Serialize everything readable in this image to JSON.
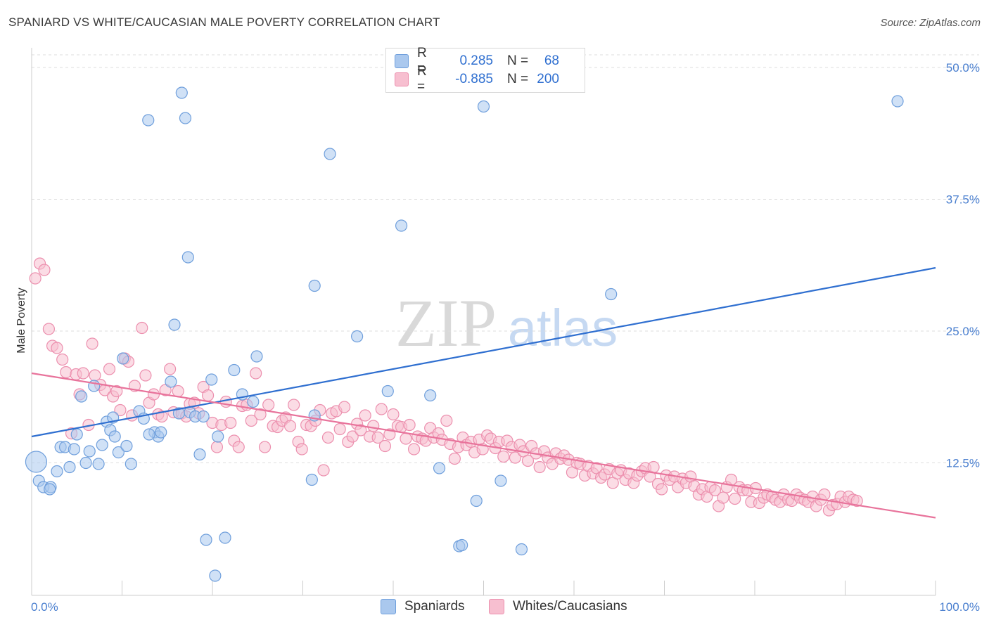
{
  "header": {
    "title": "SPANIARD VS WHITE/CAUCASIAN MALE POVERTY CORRELATION CHART",
    "source": "Source: ZipAtlas.com"
  },
  "watermark": {
    "zip": "ZIP",
    "atlas": "atlas"
  },
  "legend": {
    "rows": [
      {
        "r_label": "R =",
        "r_value": "0.285",
        "n_label": "N =",
        "n_value": "68"
      },
      {
        "r_label": "R =",
        "r_value": "-0.885",
        "n_label": "N =",
        "n_value": "200"
      }
    ]
  },
  "bottom_legend": {
    "series1": "Spaniards",
    "series2": "Whites/Caucasians"
  },
  "colors": {
    "blue_fill": "#aac8ee",
    "blue_stroke": "#6f9fdc",
    "blue_line": "#2f6fd0",
    "pink_fill": "#f7bfd0",
    "pink_stroke": "#ec8fae",
    "pink_line": "#e8739b",
    "grid": "#dddddd",
    "axis": "#cccccc",
    "tick_text": "#4a7fcf"
  },
  "chart_data": {
    "type": "scatter",
    "title": "SPANIARD VS WHITE/CAUCASIAN MALE POVERTY CORRELATION CHART",
    "xlabel": "",
    "ylabel": "Male Poverty",
    "xlim": [
      0,
      100
    ],
    "ylim": [
      0,
      50
    ],
    "x_tick_labels": [
      "0.0%",
      "100.0%"
    ],
    "y_ticks": [
      12.5,
      25.0,
      37.5,
      50.0
    ],
    "y_tick_labels": [
      "12.5%",
      "25.0%",
      "37.5%",
      "50.0%"
    ],
    "grid": true,
    "legend_position": "top-center",
    "series": [
      {
        "name": "Spaniards",
        "R": 0.285,
        "N": 68,
        "trend": {
          "x": [
            0,
            100
          ],
          "y": [
            15.0,
            31.0
          ]
        },
        "points": [
          [
            0.5,
            12.6
          ],
          [
            0.8,
            10.8
          ],
          [
            1.3,
            10.2
          ],
          [
            2.1,
            10.2
          ],
          [
            2.8,
            11.7
          ],
          [
            3.2,
            14.0
          ],
          [
            3.7,
            14.0
          ],
          [
            4.2,
            12.1
          ],
          [
            4.7,
            13.8
          ],
          [
            5.0,
            15.2
          ],
          [
            5.5,
            18.8
          ],
          [
            6.0,
            12.5
          ],
          [
            6.4,
            13.6
          ],
          [
            6.9,
            19.8
          ],
          [
            7.4,
            12.4
          ],
          [
            7.8,
            14.2
          ],
          [
            8.3,
            16.4
          ],
          [
            8.7,
            15.6
          ],
          [
            9.2,
            15.0
          ],
          [
            9.6,
            13.5
          ],
          [
            10.1,
            22.4
          ],
          [
            10.5,
            14.1
          ],
          [
            11.0,
            12.4
          ],
          [
            11.9,
            17.4
          ],
          [
            12.4,
            16.7
          ],
          [
            12.9,
            45.0
          ],
          [
            13.6,
            15.4
          ],
          [
            14.0,
            15.0
          ],
          [
            14.3,
            15.4
          ],
          [
            15.4,
            20.2
          ],
          [
            15.8,
            25.6
          ],
          [
            16.3,
            17.2
          ],
          [
            16.6,
            47.6
          ],
          [
            17.0,
            45.2
          ],
          [
            17.3,
            32.0
          ],
          [
            17.5,
            17.3
          ],
          [
            18.1,
            16.9
          ],
          [
            18.6,
            13.3
          ],
          [
            19.0,
            16.9
          ],
          [
            19.3,
            5.2
          ],
          [
            19.9,
            20.4
          ],
          [
            20.3,
            1.8
          ],
          [
            20.6,
            15.0
          ],
          [
            21.4,
            5.4
          ],
          [
            22.4,
            21.3
          ],
          [
            23.3,
            19.0
          ],
          [
            24.5,
            18.3
          ],
          [
            24.9,
            22.6
          ],
          [
            31.0,
            10.9
          ],
          [
            31.3,
            17.0
          ],
          [
            31.3,
            29.3
          ],
          [
            33.0,
            41.8
          ],
          [
            36.0,
            24.5
          ],
          [
            39.4,
            19.3
          ],
          [
            40.9,
            35.0
          ],
          [
            44.1,
            18.9
          ],
          [
            45.1,
            12.0
          ],
          [
            47.3,
            4.6
          ],
          [
            47.6,
            4.7
          ],
          [
            49.2,
            8.9
          ],
          [
            50.0,
            46.3
          ],
          [
            51.9,
            10.8
          ],
          [
            54.2,
            4.3
          ],
          [
            64.1,
            28.5
          ],
          [
            95.8,
            46.8
          ],
          [
            2.0,
            10.0
          ],
          [
            13.0,
            15.2
          ],
          [
            9.0,
            16.8
          ]
        ]
      },
      {
        "name": "Whites/Caucasians",
        "R": -0.885,
        "N": 200,
        "trend": {
          "x": [
            0,
            100
          ],
          "y": [
            21.0,
            7.3
          ]
        },
        "points": [
          [
            0.4,
            30.0
          ],
          [
            0.9,
            31.4
          ],
          [
            1.4,
            30.8
          ],
          [
            1.9,
            25.2
          ],
          [
            2.3,
            23.6
          ],
          [
            2.8,
            23.4
          ],
          [
            3.4,
            22.3
          ],
          [
            3.8,
            21.1
          ],
          [
            4.4,
            15.3
          ],
          [
            4.9,
            20.9
          ],
          [
            5.3,
            19.0
          ],
          [
            5.7,
            21.0
          ],
          [
            6.3,
            16.1
          ],
          [
            6.7,
            23.8
          ],
          [
            7.0,
            20.8
          ],
          [
            7.6,
            19.9
          ],
          [
            8.1,
            19.4
          ],
          [
            8.6,
            21.4
          ],
          [
            9.0,
            18.8
          ],
          [
            9.4,
            19.3
          ],
          [
            9.8,
            17.5
          ],
          [
            10.3,
            22.4
          ],
          [
            10.7,
            22.1
          ],
          [
            11.1,
            17.0
          ],
          [
            11.4,
            19.8
          ],
          [
            12.2,
            25.3
          ],
          [
            12.6,
            20.8
          ],
          [
            13.0,
            18.2
          ],
          [
            13.5,
            19.0
          ],
          [
            14.0,
            17.1
          ],
          [
            14.4,
            16.9
          ],
          [
            14.8,
            19.4
          ],
          [
            15.3,
            21.4
          ],
          [
            15.7,
            17.3
          ],
          [
            16.2,
            19.3
          ],
          [
            16.6,
            17.2
          ],
          [
            17.1,
            16.9
          ],
          [
            17.5,
            18.1
          ],
          [
            18.0,
            18.2
          ],
          [
            18.5,
            17.2
          ],
          [
            19.0,
            19.7
          ],
          [
            19.5,
            18.9
          ],
          [
            20.0,
            16.3
          ],
          [
            20.5,
            14.0
          ],
          [
            21.0,
            16.1
          ],
          [
            21.5,
            18.3
          ],
          [
            22.0,
            16.3
          ],
          [
            22.4,
            14.6
          ],
          [
            22.9,
            14.0
          ],
          [
            23.3,
            17.9
          ],
          [
            23.8,
            18.0
          ],
          [
            24.3,
            16.5
          ],
          [
            24.8,
            21.0
          ],
          [
            25.3,
            17.1
          ],
          [
            25.8,
            14.0
          ],
          [
            26.2,
            18.0
          ],
          [
            26.7,
            16.0
          ],
          [
            27.2,
            15.9
          ],
          [
            27.7,
            16.5
          ],
          [
            28.1,
            16.8
          ],
          [
            28.6,
            16.0
          ],
          [
            29.0,
            18.0
          ],
          [
            29.5,
            14.5
          ],
          [
            29.9,
            13.8
          ],
          [
            30.4,
            16.1
          ],
          [
            30.9,
            16.0
          ],
          [
            31.4,
            16.5
          ],
          [
            31.9,
            17.5
          ],
          [
            32.3,
            11.8
          ],
          [
            32.8,
            14.9
          ],
          [
            33.2,
            17.2
          ],
          [
            33.7,
            17.4
          ],
          [
            34.1,
            15.7
          ],
          [
            34.6,
            17.8
          ],
          [
            35.0,
            14.5
          ],
          [
            35.5,
            15.0
          ],
          [
            36.0,
            16.2
          ],
          [
            36.4,
            15.6
          ],
          [
            36.9,
            17.0
          ],
          [
            37.4,
            15.0
          ],
          [
            37.8,
            16.0
          ],
          [
            38.3,
            14.9
          ],
          [
            38.7,
            17.6
          ],
          [
            39.1,
            14.1
          ],
          [
            39.6,
            15.2
          ],
          [
            40.0,
            17.1
          ],
          [
            40.5,
            16.0
          ],
          [
            40.9,
            15.9
          ],
          [
            41.4,
            14.8
          ],
          [
            41.8,
            16.1
          ],
          [
            42.3,
            13.8
          ],
          [
            42.7,
            15.0
          ],
          [
            43.2,
            14.8
          ],
          [
            43.6,
            14.6
          ],
          [
            44.1,
            15.8
          ],
          [
            44.5,
            14.9
          ],
          [
            45.0,
            15.3
          ],
          [
            45.4,
            14.7
          ],
          [
            45.9,
            16.5
          ],
          [
            46.3,
            14.3
          ],
          [
            46.8,
            12.9
          ],
          [
            47.2,
            14.0
          ],
          [
            47.7,
            14.9
          ],
          [
            48.1,
            14.2
          ],
          [
            48.6,
            14.5
          ],
          [
            49.0,
            13.5
          ],
          [
            49.5,
            14.7
          ],
          [
            49.9,
            13.8
          ],
          [
            50.4,
            15.1
          ],
          [
            50.8,
            14.8
          ],
          [
            51.3,
            13.9
          ],
          [
            51.7,
            14.5
          ],
          [
            52.2,
            13.1
          ],
          [
            52.6,
            14.6
          ],
          [
            53.1,
            14.0
          ],
          [
            53.5,
            13.0
          ],
          [
            54.0,
            14.2
          ],
          [
            54.4,
            13.6
          ],
          [
            54.9,
            12.7
          ],
          [
            55.3,
            14.1
          ],
          [
            55.8,
            13.4
          ],
          [
            56.2,
            12.1
          ],
          [
            56.7,
            13.6
          ],
          [
            57.1,
            13.0
          ],
          [
            57.6,
            12.4
          ],
          [
            58.0,
            13.4
          ],
          [
            58.5,
            12.9
          ],
          [
            58.9,
            13.2
          ],
          [
            59.4,
            12.8
          ],
          [
            59.8,
            11.6
          ],
          [
            60.3,
            12.5
          ],
          [
            60.7,
            12.4
          ],
          [
            61.2,
            11.3
          ],
          [
            61.6,
            12.2
          ],
          [
            62.1,
            11.5
          ],
          [
            62.5,
            12.0
          ],
          [
            63.0,
            11.1
          ],
          [
            63.4,
            11.4
          ],
          [
            63.9,
            11.9
          ],
          [
            64.3,
            10.6
          ],
          [
            64.8,
            11.5
          ],
          [
            65.2,
            11.8
          ],
          [
            65.7,
            10.9
          ],
          [
            66.1,
            11.5
          ],
          [
            66.6,
            10.6
          ],
          [
            67.0,
            11.3
          ],
          [
            67.5,
            11.7
          ],
          [
            67.9,
            12.0
          ],
          [
            68.4,
            11.2
          ],
          [
            68.8,
            12.1
          ],
          [
            69.3,
            10.5
          ],
          [
            69.7,
            10.0
          ],
          [
            70.2,
            11.3
          ],
          [
            70.6,
            10.9
          ],
          [
            71.1,
            11.2
          ],
          [
            71.5,
            10.2
          ],
          [
            72.0,
            11.0
          ],
          [
            72.4,
            10.6
          ],
          [
            72.9,
            11.2
          ],
          [
            73.3,
            10.3
          ],
          [
            73.8,
            9.5
          ],
          [
            74.2,
            10.0
          ],
          [
            74.7,
            9.3
          ],
          [
            75.1,
            10.2
          ],
          [
            75.6,
            9.9
          ],
          [
            76.0,
            8.4
          ],
          [
            76.5,
            9.2
          ],
          [
            76.9,
            10.2
          ],
          [
            77.4,
            10.9
          ],
          [
            77.8,
            9.1
          ],
          [
            78.3,
            10.2
          ],
          [
            78.7,
            9.9
          ],
          [
            79.2,
            9.9
          ],
          [
            79.6,
            8.8
          ],
          [
            80.1,
            10.1
          ],
          [
            80.5,
            8.7
          ],
          [
            81.0,
            9.2
          ],
          [
            81.4,
            9.5
          ],
          [
            81.9,
            9.3
          ],
          [
            82.3,
            9.0
          ],
          [
            82.8,
            8.8
          ],
          [
            83.2,
            9.5
          ],
          [
            83.7,
            9.0
          ],
          [
            84.1,
            8.9
          ],
          [
            84.6,
            9.5
          ],
          [
            85.0,
            9.2
          ],
          [
            85.5,
            9.0
          ],
          [
            85.9,
            8.8
          ],
          [
            86.4,
            9.3
          ],
          [
            86.8,
            8.4
          ],
          [
            87.3,
            9.0
          ],
          [
            87.7,
            9.5
          ],
          [
            88.2,
            8.0
          ],
          [
            88.6,
            8.5
          ],
          [
            89.1,
            8.6
          ],
          [
            89.5,
            9.3
          ],
          [
            90.0,
            8.8
          ],
          [
            90.4,
            9.3
          ],
          [
            90.9,
            9.0
          ],
          [
            91.3,
            8.9
          ]
        ]
      }
    ]
  }
}
